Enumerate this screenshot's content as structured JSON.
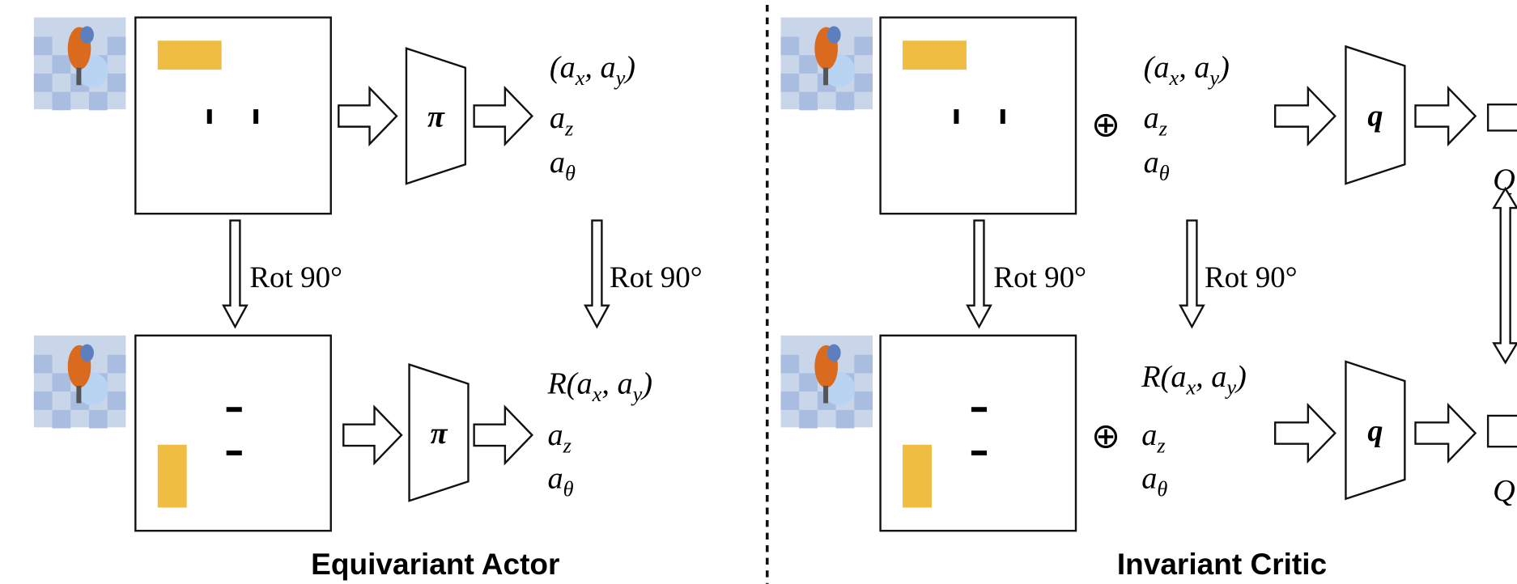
{
  "actor": {
    "title": "Equivariant Actor",
    "network_top": "π",
    "network_bottom": "π",
    "rotation_left": "Rot 90°",
    "rotation_right": "Rot 90°",
    "actions_top": [
      [
        "(a",
        "x",
        ", a",
        "y",
        ")"
      ],
      [
        "a",
        "z"
      ],
      [
        "a",
        "θ"
      ]
    ],
    "actions_bottom": [
      [
        "R(a",
        "x",
        ", a",
        "y",
        ")"
      ],
      [
        "a",
        "z"
      ],
      [
        "a",
        "θ"
      ]
    ]
  },
  "critic": {
    "title": "Invariant Critic",
    "concat_top": "⊕",
    "concat_bottom": "⊕",
    "network_top": "q",
    "network_bottom": "q",
    "rotation_left": "Rot 90°",
    "rotation_right": "Rot 90°",
    "actions_top": [
      [
        "(a",
        "x",
        ", a",
        "y",
        ")"
      ],
      [
        "a",
        "z"
      ],
      [
        "a",
        "θ"
      ]
    ],
    "actions_bottom": [
      [
        "R(a",
        "x",
        ", a",
        "y",
        ")"
      ],
      [
        "a",
        "z"
      ],
      [
        "a",
        "θ"
      ]
    ],
    "output_top": "Q",
    "output_bottom": "Q"
  }
}
